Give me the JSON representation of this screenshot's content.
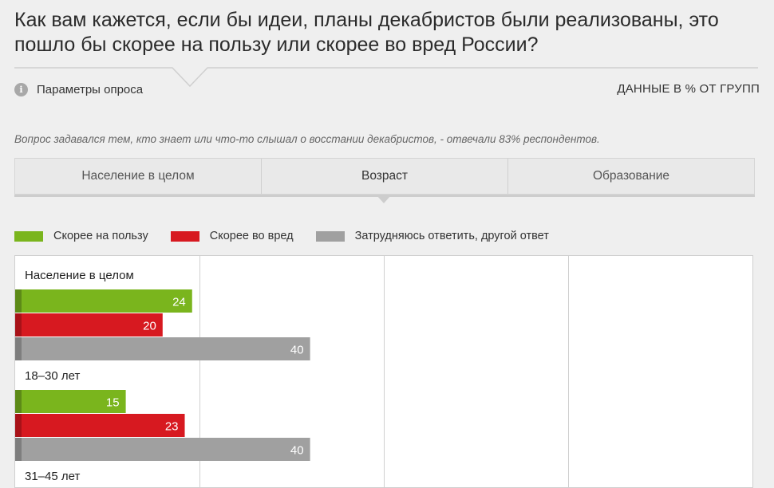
{
  "title": "Как вам кажется, если бы идеи, планы декабристов были реализованы, это пошло бы скорее на пользу или скорее во вред России?",
  "params_label": "Параметры опроса",
  "params_icon": "info-icon",
  "units_label": "ДАННЫЕ В % ОТ ГРУПП",
  "note": "Вопрос задавался тем, кто знает или что-то слышал о восстании декабристов, - отвечали 83% респондентов.",
  "tabs": [
    {
      "label": "Население в целом",
      "active": false
    },
    {
      "label": "Возраст",
      "active": true
    },
    {
      "label": "Образование",
      "active": false
    }
  ],
  "colors": {
    "green": "#7ab51d",
    "red": "#d71920",
    "gray": "#a0a0a0",
    "divider": "#d0d0d0"
  },
  "chart_data": {
    "type": "bar",
    "orientation": "horizontal",
    "xlim": [
      0,
      100
    ],
    "series": [
      {
        "name": "Скорее на пользу",
        "color": "#7ab51d"
      },
      {
        "name": "Скорее во вред",
        "color": "#d71920"
      },
      {
        "name": "Затрудняюсь ответить, другой ответ",
        "color": "#a0a0a0"
      }
    ],
    "groups": [
      {
        "label": "Население в целом",
        "values": [
          24,
          20,
          40
        ]
      },
      {
        "label": "18–30 лет",
        "values": [
          15,
          23,
          40
        ]
      },
      {
        "label": "31–45 лет",
        "values": [
          null,
          null,
          null
        ]
      }
    ]
  }
}
